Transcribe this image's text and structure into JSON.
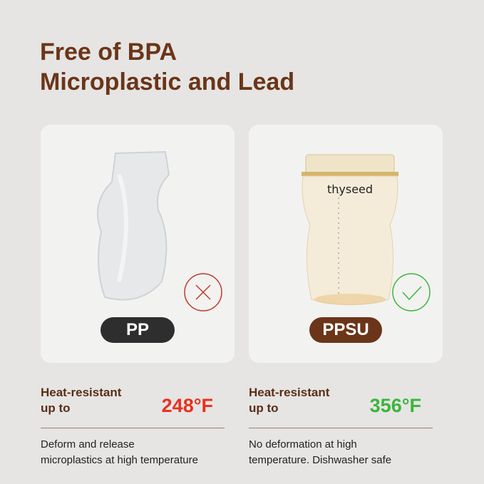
{
  "title": {
    "line1": "Free of BPA",
    "line2": "Microplastic and Lead"
  },
  "left": {
    "badge": "PP",
    "badge_color": "#2e2e2e",
    "mark_icon": "x-circle-icon",
    "mark_color": "#c0392b",
    "heat_line1": "Heat-resistant",
    "heat_line2": "up to",
    "temp": "248°F",
    "temp_color": "#e8321e",
    "desc_line1": "Deform and release",
    "desc_line2": "microplastics at high temperature"
  },
  "right": {
    "badge": "PPSU",
    "badge_color": "#6b3519",
    "brand": "thyseed",
    "mark_icon": "check-circle-icon",
    "mark_color": "#3cb53c",
    "heat_line1": "Heat-resistant",
    "heat_line2": "up to",
    "temp": "356°F",
    "temp_color": "#3cb53c",
    "desc_line1": "No deformation at high",
    "desc_line2": "temperature. Dishwasher safe"
  }
}
